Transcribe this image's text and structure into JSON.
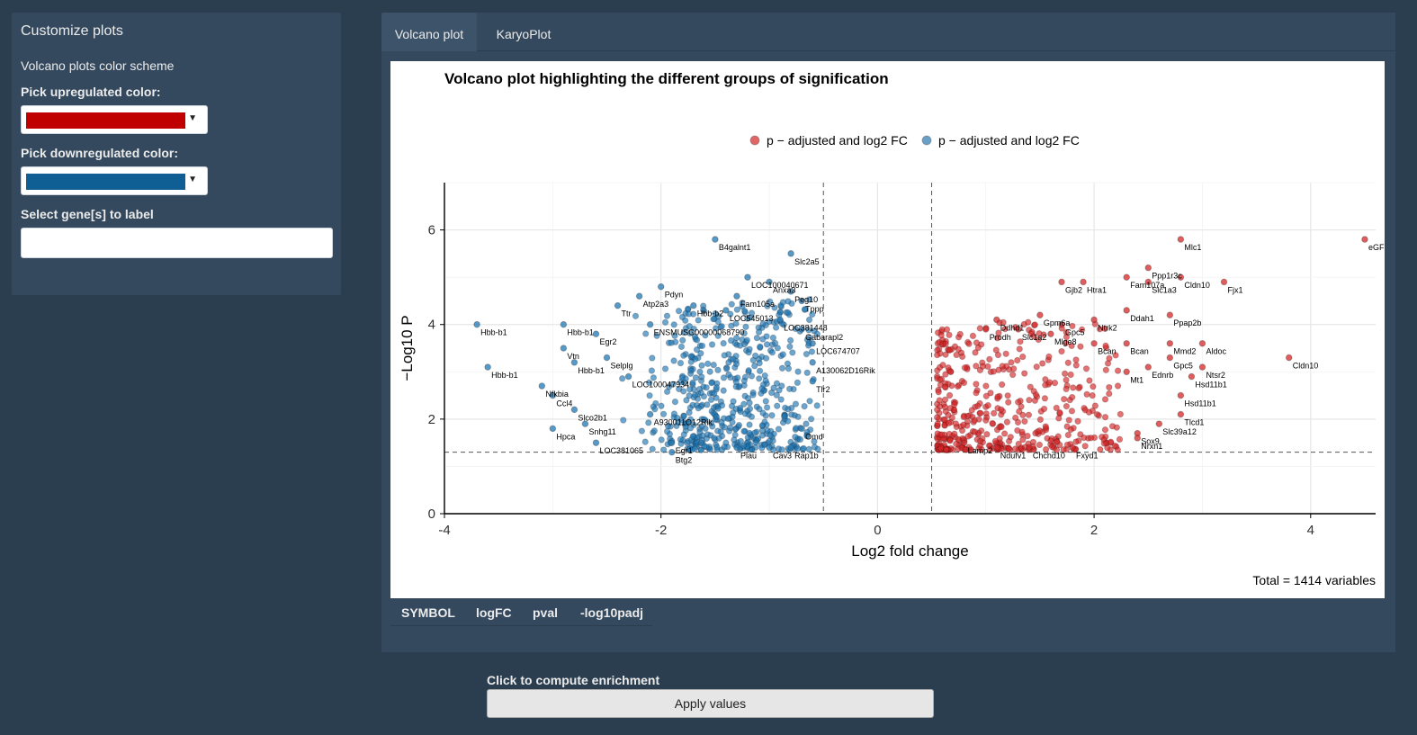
{
  "sidebar": {
    "title": "Customize plots",
    "subtitle": "Volcano plots color scheme",
    "up_label": "Pick upregulated color:",
    "up_color": "#c00000",
    "down_label": "Pick downregulated color:",
    "down_color": "#0f5e94",
    "genes_label": "Select gene[s] to label",
    "genes_value": ""
  },
  "tabs": [
    {
      "label": "Volcano plot",
      "active": true
    },
    {
      "label": "KaryoPlot",
      "active": false
    }
  ],
  "table": {
    "columns": [
      "SYMBOL",
      "logFC",
      "pval",
      "-log10padj"
    ]
  },
  "enrichment": {
    "label": "Click to compute enrichment",
    "button": "Apply values"
  },
  "chart_data": {
    "type": "scatter",
    "title": "Volcano plot highlighting the different groups of signification",
    "xlabel": "Log2 fold change",
    "ylabel": "−Log10 P",
    "xlim": [
      -4,
      4.6
    ],
    "ylim": [
      0,
      7
    ],
    "x_ticks": [
      -4,
      -2,
      0,
      2,
      4
    ],
    "y_ticks": [
      0,
      2,
      4,
      6
    ],
    "fc_cutoffs": [
      -0.5,
      0.5
    ],
    "p_cutoff": 1.3,
    "grid": true,
    "legend_position": "top",
    "legend": [
      {
        "label": "p − adjusted and log2 FC",
        "color": "#e06666"
      },
      {
        "label": "p − adjusted and log2 FC",
        "color": "#6aa0c8"
      }
    ],
    "caption": "Total = 1414 variables",
    "series": [
      {
        "group": "down",
        "color": "#1f77b4",
        "points": [
          {
            "x": -3.7,
            "y": 4.0,
            "label": "Hbb-b1"
          },
          {
            "x": -2.9,
            "y": 4.0,
            "label": "Hbb-b1"
          },
          {
            "x": -3.6,
            "y": 3.1,
            "label": "Hbb-b1"
          },
          {
            "x": -3.1,
            "y": 2.7,
            "label": "Nfkbia"
          },
          {
            "x": -2.8,
            "y": 3.2,
            "label": "Hbb-b1"
          },
          {
            "x": -2.9,
            "y": 3.5,
            "label": "Vtn"
          },
          {
            "x": -2.6,
            "y": 3.8,
            "label": "Egr2"
          },
          {
            "x": -2.4,
            "y": 4.4,
            "label": "Ttr"
          },
          {
            "x": -2.2,
            "y": 4.6,
            "label": "Atp2a3"
          },
          {
            "x": -2.0,
            "y": 4.8,
            "label": "Pdyn"
          },
          {
            "x": -1.5,
            "y": 5.8,
            "label": "B4galnt1"
          },
          {
            "x": -1.2,
            "y": 5.0,
            "label": "LOC100040671"
          },
          {
            "x": -0.8,
            "y": 5.5,
            "label": "Slc2a5"
          },
          {
            "x": -1.0,
            "y": 4.9,
            "label": "Anxa3"
          },
          {
            "x": -1.3,
            "y": 4.6,
            "label": "Fam105a"
          },
          {
            "x": -0.8,
            "y": 4.7,
            "label": "Peg10"
          },
          {
            "x": -0.7,
            "y": 4.5,
            "label": "Tppp"
          },
          {
            "x": -1.7,
            "y": 4.4,
            "label": "Hbb-b2"
          },
          {
            "x": -1.4,
            "y": 4.3,
            "label": "LOC545013"
          },
          {
            "x": -2.1,
            "y": 4.0,
            "label": "ENSMUSG00000068790"
          },
          {
            "x": -0.9,
            "y": 4.1,
            "label": "LOC381448"
          },
          {
            "x": -0.7,
            "y": 3.9,
            "label": "Gabarapl2"
          },
          {
            "x": -0.6,
            "y": 3.6,
            "label": "LOC674707"
          },
          {
            "x": -2.5,
            "y": 3.3,
            "label": "Selplg"
          },
          {
            "x": -2.3,
            "y": 2.9,
            "label": "LOC100047934"
          },
          {
            "x": -3.0,
            "y": 2.5,
            "label": "Ccl4"
          },
          {
            "x": -2.8,
            "y": 2.2,
            "label": "Slco2b1"
          },
          {
            "x": -2.7,
            "y": 1.9,
            "label": "Snhg11"
          },
          {
            "x": -3.0,
            "y": 1.8,
            "label": "Hpca"
          },
          {
            "x": -2.6,
            "y": 1.5,
            "label": "LOC381065"
          },
          {
            "x": -2.1,
            "y": 2.1,
            "label": "A930011O12Rik"
          },
          {
            "x": -1.9,
            "y": 1.5,
            "label": "Egr1"
          },
          {
            "x": -1.9,
            "y": 1.3,
            "label": "Btg2"
          },
          {
            "x": -0.8,
            "y": 1.4,
            "label": "Rap1b"
          },
          {
            "x": -1.0,
            "y": 1.4,
            "label": "Cav3"
          },
          {
            "x": -1.3,
            "y": 1.4,
            "label": "Plau"
          },
          {
            "x": -0.6,
            "y": 2.8,
            "label": "Tlr2"
          },
          {
            "x": -0.6,
            "y": 3.2,
            "label": "A130062D16Rik"
          },
          {
            "x": -0.7,
            "y": 1.8,
            "label": "Omd"
          }
        ]
      },
      {
        "group": "up",
        "color": "#d62728",
        "points": [
          {
            "x": 4.5,
            "y": 5.8,
            "label": "eGFP"
          },
          {
            "x": 2.8,
            "y": 5.8,
            "label": "Mlc1"
          },
          {
            "x": 3.8,
            "y": 3.3,
            "label": "Cldn10"
          },
          {
            "x": 2.5,
            "y": 5.2,
            "label": "Ppp1r3c"
          },
          {
            "x": 2.8,
            "y": 5.0,
            "label": "Cldn10"
          },
          {
            "x": 3.2,
            "y": 4.9,
            "label": "Fjx1"
          },
          {
            "x": 2.3,
            "y": 5.0,
            "label": "Fam107a"
          },
          {
            "x": 2.5,
            "y": 4.9,
            "label": "Slc1a3"
          },
          {
            "x": 1.7,
            "y": 4.9,
            "label": "Gjb2"
          },
          {
            "x": 1.9,
            "y": 4.9,
            "label": "Htra1"
          },
          {
            "x": 2.3,
            "y": 4.3,
            "label": "Ddah1"
          },
          {
            "x": 2.7,
            "y": 4.2,
            "label": "Ppap2b"
          },
          {
            "x": 1.1,
            "y": 4.1,
            "label": "Ddhd1"
          },
          {
            "x": 1.5,
            "y": 4.2,
            "label": "Gpm6a"
          },
          {
            "x": 1.7,
            "y": 4.0,
            "label": "Gpc5"
          },
          {
            "x": 2.0,
            "y": 4.1,
            "label": "Ntrk2"
          },
          {
            "x": 3.0,
            "y": 3.6,
            "label": "Aldoc"
          },
          {
            "x": 2.7,
            "y": 3.6,
            "label": "Mmd2"
          },
          {
            "x": 2.7,
            "y": 3.3,
            "label": "Gpc5"
          },
          {
            "x": 3.0,
            "y": 3.1,
            "label": "Ntsr2"
          },
          {
            "x": 2.9,
            "y": 2.9,
            "label": "Hsd11b1"
          },
          {
            "x": 2.8,
            "y": 2.5,
            "label": "Hsd11b1"
          },
          {
            "x": 2.8,
            "y": 2.1,
            "label": "Tlcd1"
          },
          {
            "x": 2.6,
            "y": 1.9,
            "label": "Slc39a12"
          },
          {
            "x": 2.4,
            "y": 1.7,
            "label": "Sox9"
          },
          {
            "x": 2.4,
            "y": 1.6,
            "label": "Nrxn1"
          },
          {
            "x": 1.0,
            "y": 3.9,
            "label": "Prodh"
          },
          {
            "x": 1.3,
            "y": 3.9,
            "label": "Slc1a2"
          },
          {
            "x": 1.6,
            "y": 3.8,
            "label": "Mlge8"
          },
          {
            "x": 2.0,
            "y": 3.6,
            "label": "Bcan"
          },
          {
            "x": 2.3,
            "y": 3.6,
            "label": "Bcan"
          },
          {
            "x": 2.3,
            "y": 3.0,
            "label": "Mt1"
          },
          {
            "x": 2.5,
            "y": 3.1,
            "label": "Ednrb"
          },
          {
            "x": 0.8,
            "y": 1.5,
            "label": "Lamp2"
          },
          {
            "x": 1.1,
            "y": 1.4,
            "label": "Ndufv1"
          },
          {
            "x": 1.4,
            "y": 1.4,
            "label": "Chchd10"
          },
          {
            "x": 1.8,
            "y": 1.4,
            "label": "Fxyd1"
          }
        ]
      }
    ]
  }
}
